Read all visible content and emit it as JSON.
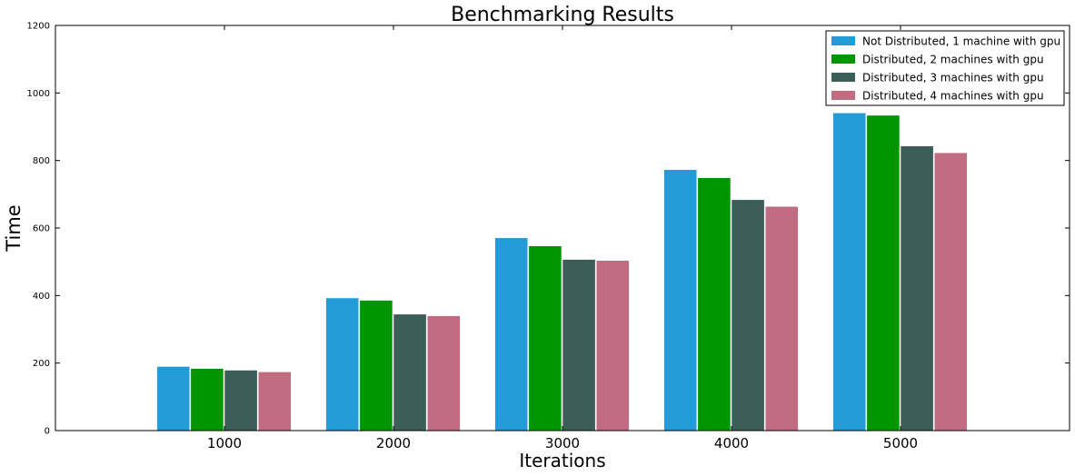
{
  "chart_data": {
    "type": "bar",
    "title": "Benchmarking Results",
    "xlabel": "Iterations",
    "ylabel": "Time",
    "categories": [
      "1000",
      "2000",
      "3000",
      "4000",
      "5000"
    ],
    "ylim": [
      0,
      1200
    ],
    "yticks": [
      "0",
      "200",
      "400",
      "600",
      "800",
      "1000",
      "1200"
    ],
    "legend_position": "top-right",
    "grid": false,
    "series": [
      {
        "name": "Not Distributed, 1 machine with gpu",
        "color": "#229bd8",
        "values": [
          190,
          393,
          571,
          773,
          941
        ]
      },
      {
        "name": "Distributed, 2 machines with gpu",
        "color": "#009603",
        "values": [
          184,
          386,
          547,
          749,
          934
        ]
      },
      {
        "name": "Distributed, 3 machines with gpu",
        "color": "#3b5e59",
        "values": [
          179,
          345,
          507,
          684,
          843
        ]
      },
      {
        "name": "Distributed, 4 machines with gpu",
        "color": "#c26c81",
        "values": [
          174,
          340,
          504,
          664,
          823
        ]
      }
    ]
  }
}
